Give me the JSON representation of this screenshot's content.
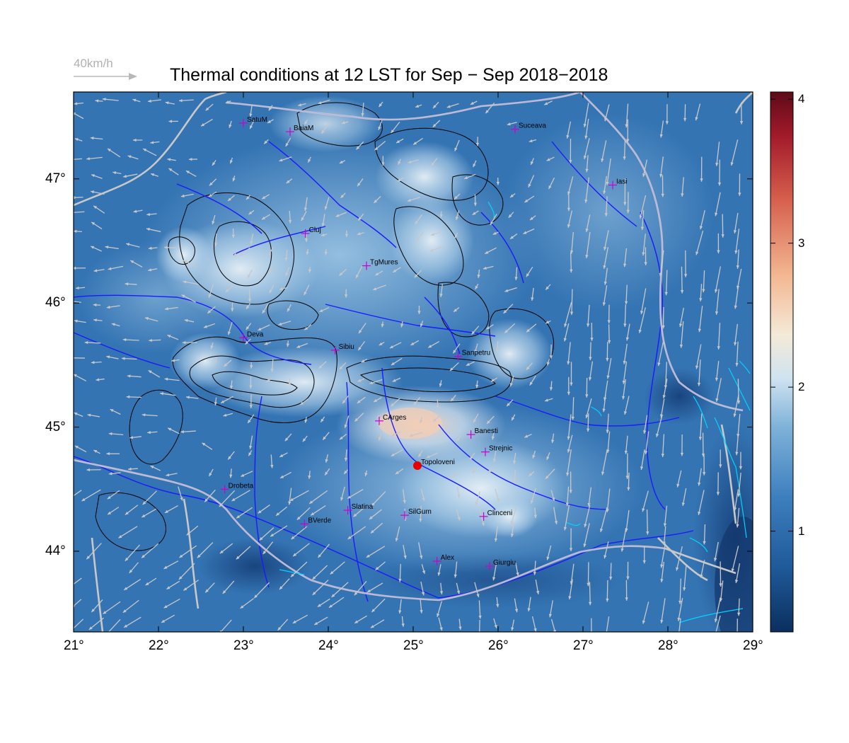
{
  "title": "Thermal conditions at 12 LST for Sep − Sep  2018−2018",
  "wind_reference": {
    "label": "40km/h",
    "color": "#b0b0b0"
  },
  "axes": {
    "lon_ticks": [
      "21°",
      "22°",
      "23°",
      "24°",
      "25°",
      "26°",
      "27°",
      "28°",
      "29°"
    ],
    "lat_ticks": [
      "44°",
      "45°",
      "46°",
      "47°"
    ],
    "lon_range": [
      21,
      29
    ],
    "lat_range": [
      43.35,
      47.7
    ]
  },
  "colorbar": {
    "ticks": [
      "1",
      "2",
      "3",
      "4"
    ],
    "range": [
      0.3,
      4.05
    ],
    "palette": [
      "#0b2f5e",
      "#1f5a99",
      "#3d7fbe",
      "#7fb2d9",
      "#cfe3f0",
      "#f4ead8",
      "#f3b792",
      "#d6604d",
      "#8a1020",
      "#5e0a18"
    ]
  },
  "cities": [
    {
      "name": "SatuM",
      "lon": 23.0,
      "lat": 47.45
    },
    {
      "name": "BaiaM",
      "lon": 23.55,
      "lat": 47.38
    },
    {
      "name": "Suceava",
      "lon": 26.2,
      "lat": 47.4
    },
    {
      "name": "Iasi",
      "lon": 27.35,
      "lat": 46.95
    },
    {
      "name": "Cluj",
      "lon": 23.73,
      "lat": 46.56
    },
    {
      "name": "TgMures",
      "lon": 24.45,
      "lat": 46.3
    },
    {
      "name": "Deva",
      "lon": 23.0,
      "lat": 45.72
    },
    {
      "name": "Sibiu",
      "lon": 24.08,
      "lat": 45.62
    },
    {
      "name": "Sanpetru",
      "lon": 25.53,
      "lat": 45.57
    },
    {
      "name": "CArges",
      "lon": 24.6,
      "lat": 45.05
    },
    {
      "name": "Banesti",
      "lon": 25.68,
      "lat": 44.94
    },
    {
      "name": "Strejnic",
      "lon": 25.85,
      "lat": 44.8
    },
    {
      "name": "Topoloveni",
      "lon": 25.05,
      "lat": 44.69
    },
    {
      "name": "Drobeta",
      "lon": 22.78,
      "lat": 44.5
    },
    {
      "name": "Slatina",
      "lon": 24.23,
      "lat": 44.33
    },
    {
      "name": "SilGum",
      "lon": 24.9,
      "lat": 44.29
    },
    {
      "name": "Clinceni",
      "lon": 25.83,
      "lat": 44.28
    },
    {
      "name": "BVerde",
      "lon": 23.72,
      "lat": 44.22
    },
    {
      "name": "Alex",
      "lon": 25.28,
      "lat": 43.92
    },
    {
      "name": "Giurgiu",
      "lon": 25.9,
      "lat": 43.88
    }
  ],
  "highlight_station": "Topoloveni",
  "colors": {
    "city_marker": "#cc00cc",
    "highlight_marker": "#e60000",
    "rivers": "#1a1aff",
    "borders": "#c8c8c8",
    "contours": "#000000",
    "lakes": "#00d5ff"
  }
}
